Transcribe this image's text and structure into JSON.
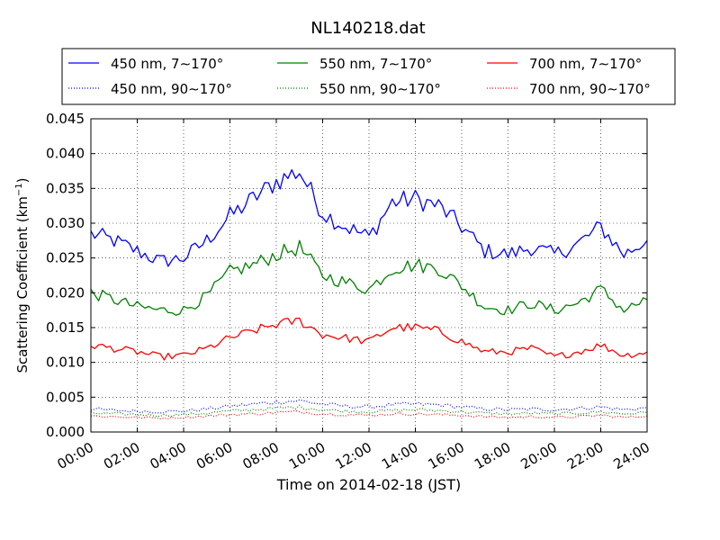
{
  "chart_data": {
    "type": "line",
    "title": "NL140218.dat",
    "xlabel": "Time on 2014-02-18 (JST)",
    "ylabel_main": "Scattering Coefficient (km",
    "ylabel_sup": "−1",
    "ylabel_close": ")",
    "xlim_hours": [
      0,
      24
    ],
    "ylim": [
      0,
      0.045
    ],
    "x_tick_hours": [
      0,
      2,
      4,
      6,
      8,
      10,
      12,
      14,
      16,
      18,
      20,
      22,
      24
    ],
    "x_tick_labels": [
      "00:00",
      "02:00",
      "04:00",
      "06:00",
      "08:00",
      "10:00",
      "12:00",
      "14:00",
      "16:00",
      "18:00",
      "20:00",
      "22:00",
      "24:00"
    ],
    "y_ticks": [
      0,
      0.005,
      0.01,
      0.015,
      0.02,
      0.025,
      0.03,
      0.035,
      0.04,
      0.045
    ],
    "y_tick_labels": [
      "0.000",
      "0.005",
      "0.010",
      "0.015",
      "0.020",
      "0.025",
      "0.030",
      "0.035",
      "0.040",
      "0.045"
    ],
    "grid": true,
    "legend_position": "top, above plot",
    "x_hours": [
      0,
      1,
      2,
      3,
      4,
      5,
      6,
      7,
      8,
      9,
      10,
      11,
      12,
      13,
      14,
      15,
      16,
      17,
      18,
      19,
      20,
      21,
      22,
      23,
      24
    ],
    "series": [
      {
        "name": "450 nm, 7∼170°",
        "color": "#0000ff",
        "style": "solid",
        "values": [
          0.0285,
          0.0275,
          0.026,
          0.0245,
          0.025,
          0.0275,
          0.031,
          0.0335,
          0.036,
          0.0375,
          0.0315,
          0.0295,
          0.028,
          0.033,
          0.0335,
          0.0325,
          0.0295,
          0.026,
          0.0255,
          0.0265,
          0.0255,
          0.027,
          0.0295,
          0.0255,
          0.0275
        ]
      },
      {
        "name": "450 nm, 90∼170°",
        "color": "#0000ff",
        "style": "dotted",
        "values": [
          0.0033,
          0.0031,
          0.003,
          0.0029,
          0.003,
          0.0033,
          0.0037,
          0.004,
          0.0043,
          0.0045,
          0.004,
          0.0037,
          0.0036,
          0.0039,
          0.004,
          0.0039,
          0.0036,
          0.0033,
          0.0032,
          0.0033,
          0.0032,
          0.0034,
          0.0036,
          0.0032,
          0.0035
        ]
      },
      {
        "name": "550 nm, 7∼170°",
        "color": "#008000",
        "style": "solid",
        "values": [
          0.02,
          0.019,
          0.018,
          0.0175,
          0.0175,
          0.0195,
          0.023,
          0.024,
          0.0255,
          0.0265,
          0.0225,
          0.0215,
          0.0205,
          0.0235,
          0.024,
          0.0235,
          0.021,
          0.018,
          0.0175,
          0.0185,
          0.0175,
          0.0185,
          0.0205,
          0.0175,
          0.019
        ]
      },
      {
        "name": "550 nm, 90∼170°",
        "color": "#008000",
        "style": "dotted",
        "values": [
          0.0027,
          0.0026,
          0.0025,
          0.0024,
          0.0025,
          0.0027,
          0.003,
          0.0032,
          0.0034,
          0.0036,
          0.0032,
          0.003,
          0.0029,
          0.0031,
          0.0032,
          0.0031,
          0.0029,
          0.0027,
          0.0026,
          0.0027,
          0.0026,
          0.0027,
          0.0029,
          0.0026,
          0.0028
        ]
      },
      {
        "name": "700 nm, 7∼170°",
        "color": "#ff0000",
        "style": "solid",
        "values": [
          0.0125,
          0.012,
          0.0115,
          0.0108,
          0.011,
          0.012,
          0.0135,
          0.0145,
          0.0155,
          0.016,
          0.014,
          0.0135,
          0.013,
          0.015,
          0.015,
          0.0145,
          0.013,
          0.0115,
          0.0115,
          0.012,
          0.0108,
          0.0115,
          0.0125,
          0.011,
          0.0115
        ]
      },
      {
        "name": "700 nm, 90∼170°",
        "color": "#ff0000",
        "style": "dotted",
        "values": [
          0.0023,
          0.0022,
          0.0021,
          0.002,
          0.0021,
          0.0023,
          0.0025,
          0.0026,
          0.0028,
          0.0029,
          0.0026,
          0.0025,
          0.0024,
          0.0026,
          0.0026,
          0.0025,
          0.0024,
          0.0022,
          0.0021,
          0.0022,
          0.0021,
          0.0022,
          0.0024,
          0.0021,
          0.0023
        ]
      }
    ]
  }
}
